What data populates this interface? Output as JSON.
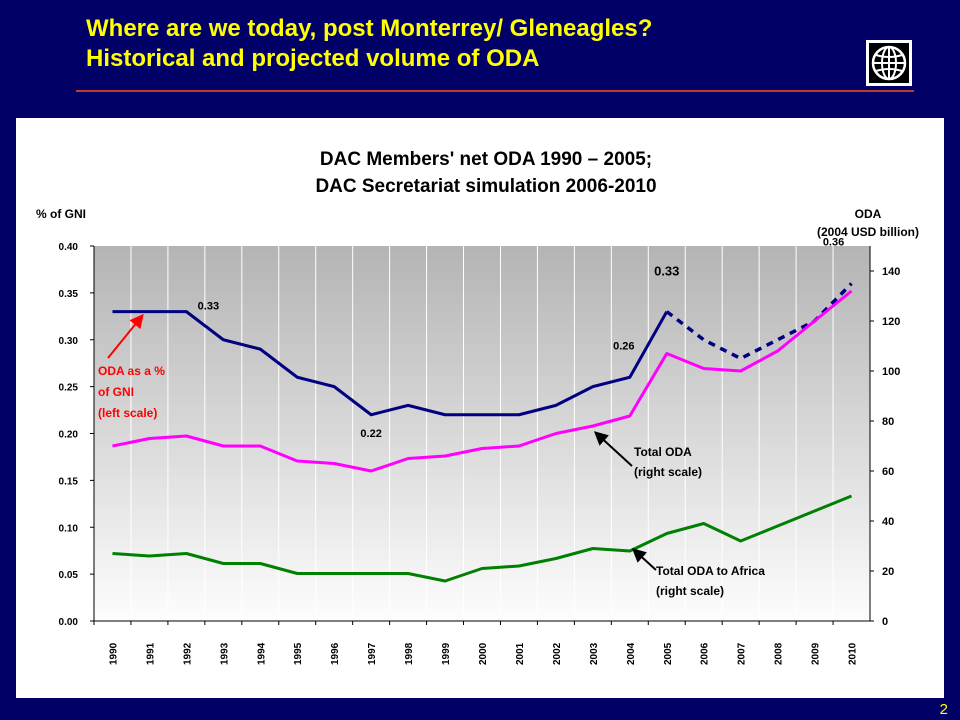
{
  "slide": {
    "title_line1": "Where are we today, post Monterrey/ Gleneagles?",
    "title_line2": "Historical and projected volume of ODA",
    "page_number": "2",
    "logo": "world-bank-globe-icon",
    "colors": {
      "background": "#000066",
      "title": "#ffff00",
      "rule": "#c0392b"
    }
  },
  "chart_data": {
    "type": "line",
    "title_line1": "DAC Members' net ODA 1990 – 2005;",
    "title_line2": "DAC Secretariat simulation 2006-2010",
    "left_axis_label": "% of GNI",
    "right_axis_label_line1": "ODA",
    "right_axis_label_line2": "(2004 USD billion)",
    "x": [
      "1990",
      "1991",
      "1992",
      "1993",
      "1994",
      "1995",
      "1996",
      "1997",
      "1998",
      "1999",
      "2000",
      "2001",
      "2002",
      "2003",
      "2004",
      "2005",
      "2006",
      "2007",
      "2008",
      "2009",
      "2010"
    ],
    "left_ticks": [
      "0.00",
      "0.05",
      "0.10",
      "0.15",
      "0.20",
      "0.25",
      "0.30",
      "0.35",
      "0.40"
    ],
    "right_ticks": [
      "0",
      "20",
      "40",
      "60",
      "80",
      "100",
      "120",
      "140"
    ],
    "ylim_left": [
      0,
      0.4
    ],
    "ylim_right": [
      0,
      150
    ],
    "grid": "vertical",
    "series": [
      {
        "id": "oda_gni",
        "axis": "left",
        "color": "#000080",
        "projected_from": "2005",
        "values": [
          0.33,
          0.33,
          0.33,
          0.3,
          0.29,
          0.26,
          0.25,
          0.22,
          0.23,
          0.22,
          0.22,
          0.22,
          0.23,
          0.25,
          0.26,
          0.33,
          0.3,
          0.28,
          0.3,
          0.32,
          0.36
        ]
      },
      {
        "id": "total_oda",
        "axis": "right",
        "color": "#ff00ff",
        "values": [
          70,
          73,
          74,
          70,
          70,
          64,
          63,
          60,
          65,
          66,
          69,
          70,
          75,
          78,
          82,
          107,
          101,
          100,
          108,
          120,
          132
        ]
      },
      {
        "id": "oda_africa",
        "axis": "right",
        "color": "#008000",
        "values": [
          27,
          26,
          27,
          23,
          23,
          19,
          19,
          19,
          19,
          16,
          21,
          22,
          25,
          29,
          28,
          35,
          39,
          32,
          38,
          44,
          50
        ]
      }
    ],
    "data_labels": [
      {
        "text": "0.33",
        "x": "1992",
        "series": "oda_gni"
      },
      {
        "text": "0.22",
        "x": "1997",
        "series": "oda_gni"
      },
      {
        "text": "0.26",
        "x": "2004",
        "series": "oda_gni"
      },
      {
        "text": "0.33",
        "x": "2005",
        "series": "oda_gni"
      },
      {
        "text": "0.36",
        "x": "2010",
        "series": "oda_gni"
      }
    ],
    "annotations": [
      {
        "lines": [
          "ODA as a %",
          "of GNI",
          "(left scale)"
        ],
        "color": "#ff0000"
      },
      {
        "lines": [
          "Total ODA",
          "(right scale)"
        ],
        "color": "#000000"
      },
      {
        "lines": [
          "Total ODA to Africa",
          "(right scale)"
        ],
        "color": "#000000"
      }
    ]
  }
}
